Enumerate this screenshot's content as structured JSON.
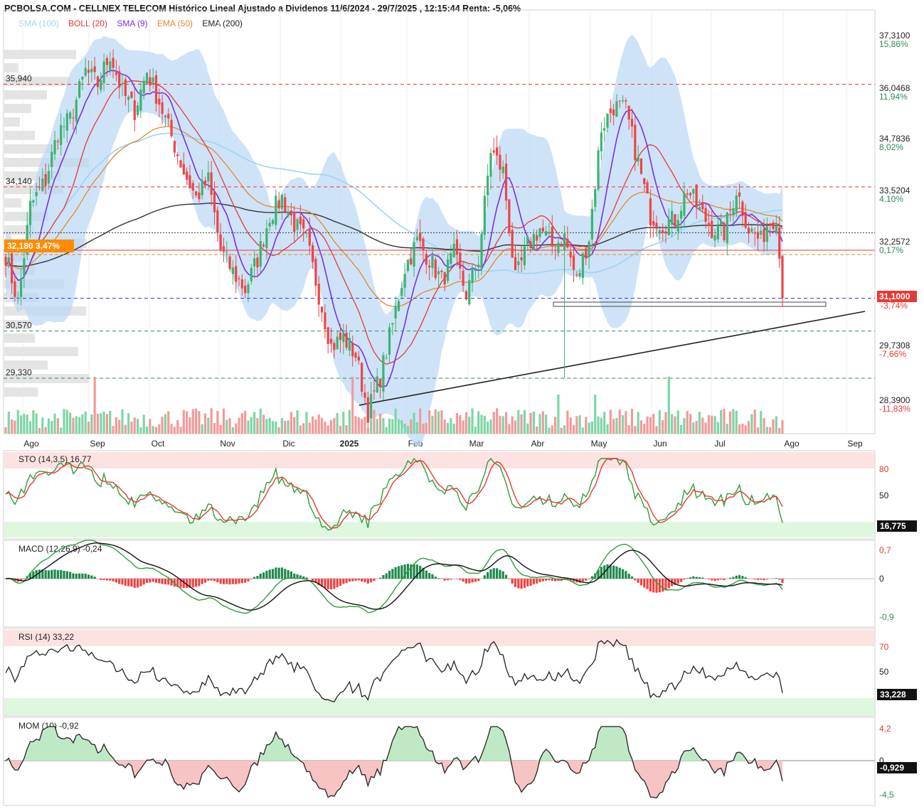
{
  "title": "PCBOLSA.COM - CELLNEX TELECOM Histórico Lineal Ajustado a Dividenos 11/6/2024 - 29/7/2025 , 12:15:44 Renta: -5,06%",
  "legend": [
    {
      "label": "SMA (100)",
      "color": "#9fd3f2"
    },
    {
      "label": "BOLL (20)",
      "color": "#e53935"
    },
    {
      "label": "SMA (9)",
      "color": "#7b2fe0"
    },
    {
      "label": "EMA (50)",
      "color": "#e08a2a"
    },
    {
      "label": "EMA (200)",
      "color": "#222222"
    }
  ],
  "chart_data": [
    {
      "type": "line",
      "name": "price",
      "x_labels": [
        "Ago",
        "Sep",
        "Oct",
        "Nov",
        "Dic",
        "2025",
        "Feb",
        "Mar",
        "Abr",
        "May",
        "Jun",
        "Jul",
        "Ago",
        "Sep"
      ],
      "y_ticks": [
        {
          "price": "37,3100",
          "pct": "15,86%"
        },
        {
          "price": "36,0468",
          "pct": "11,94%"
        },
        {
          "price": "34,7836",
          "pct": "8,02%"
        },
        {
          "price": "33,5204",
          "pct": "4,10%"
        },
        {
          "price": "32,2572",
          "pct": "0,17%"
        },
        {
          "price": "29,7308",
          "pct": "-7,66%"
        },
        {
          "price": "28,3900",
          "pct": "-11,83%"
        }
      ],
      "h_levels": [
        {
          "label": "35,940",
          "value": 36.0,
          "color": "#e53935"
        },
        {
          "label": "34,140",
          "value": 33.65,
          "color": "#e53935"
        },
        {
          "label": "30,570",
          "value": 30.35,
          "color": "#2e8b57"
        },
        {
          "label": "29,330",
          "value": 29.27,
          "color": "#2e8b57"
        }
      ],
      "last_price": {
        "label": "31,1000",
        "pct": "-3,74%",
        "value": 31.1
      },
      "ref_tag": {
        "label": "32,180  3,47%",
        "value": 32.2
      },
      "close_path": [
        [
          0,
          32.1
        ],
        [
          4,
          31.0
        ],
        [
          8,
          33.2
        ],
        [
          13,
          33.8
        ],
        [
          17,
          34.9
        ],
        [
          21,
          35.2
        ],
        [
          26,
          36.3
        ],
        [
          30,
          36.0
        ],
        [
          34,
          36.7
        ],
        [
          38,
          35.8
        ],
        [
          42,
          35.4
        ],
        [
          46,
          36.3
        ],
        [
          50,
          35.6
        ],
        [
          54,
          34.8
        ],
        [
          58,
          34.0
        ],
        [
          62,
          33.4
        ],
        [
          66,
          33.8
        ],
        [
          70,
          32.2
        ],
        [
          74,
          31.7
        ],
        [
          78,
          31.3
        ],
        [
          82,
          32.0
        ],
        [
          86,
          33.0
        ],
        [
          90,
          33.4
        ],
        [
          94,
          32.8
        ],
        [
          98,
          32.4
        ],
        [
          102,
          31.2
        ],
        [
          106,
          30.0
        ],
        [
          110,
          30.2
        ],
        [
          114,
          29.8
        ],
        [
          118,
          28.5
        ],
        [
          122,
          29.3
        ],
        [
          126,
          30.5
        ],
        [
          130,
          31.8
        ],
        [
          134,
          32.4
        ],
        [
          138,
          32.0
        ],
        [
          142,
          31.5
        ],
        [
          146,
          32.1
        ],
        [
          150,
          31.2
        ],
        [
          154,
          32.0
        ],
        [
          158,
          34.5
        ],
        [
          162,
          34.0
        ],
        [
          166,
          31.5
        ],
        [
          170,
          32.3
        ],
        [
          174,
          32.7
        ],
        [
          178,
          32.3
        ],
        [
          182,
          32.5
        ],
        [
          186,
          31.5
        ],
        [
          190,
          32.5
        ],
        [
          194,
          35.0
        ],
        [
          198,
          35.5
        ],
        [
          202,
          35.4
        ],
        [
          206,
          34.2
        ],
        [
          210,
          33.0
        ],
        [
          214,
          32.8
        ],
        [
          218,
          32.9
        ],
        [
          222,
          33.6
        ],
        [
          226,
          33.1
        ],
        [
          230,
          32.7
        ],
        [
          234,
          32.6
        ],
        [
          238,
          33.6
        ],
        [
          242,
          32.7
        ],
        [
          246,
          32.4
        ],
        [
          248,
          32.8
        ],
        [
          251,
          33.0
        ],
        [
          253,
          31.1
        ]
      ],
      "candle_count": 254,
      "sto_label": "STO (14,3,5)  16,77",
      "sto_value_tag": "16,775",
      "sto_ticks": [
        "80",
        "50"
      ],
      "macd_label": "MACD (12,26,9)  -0,24",
      "macd_ticks": [
        "0,7",
        "0",
        "-0,9"
      ],
      "rsi_label": "RSI (14)  33,22",
      "rsi_value_tag": "33,228",
      "rsi_ticks": [
        "70",
        "50"
      ],
      "mom_label": "MOM (10)  -0,92",
      "mom_value_tag": "-0,929",
      "mom_ticks": [
        "4,2",
        "0",
        "-4,5"
      ]
    }
  ],
  "colors": {
    "up": "#3cb371",
    "down": "#ef4444",
    "volume_up": "#7ed6a5",
    "volume_down": "#f29a9a",
    "boll_fill": "#b9d7f5",
    "overbought_band": "#fde2e2",
    "oversold_band": "#dff7df"
  }
}
